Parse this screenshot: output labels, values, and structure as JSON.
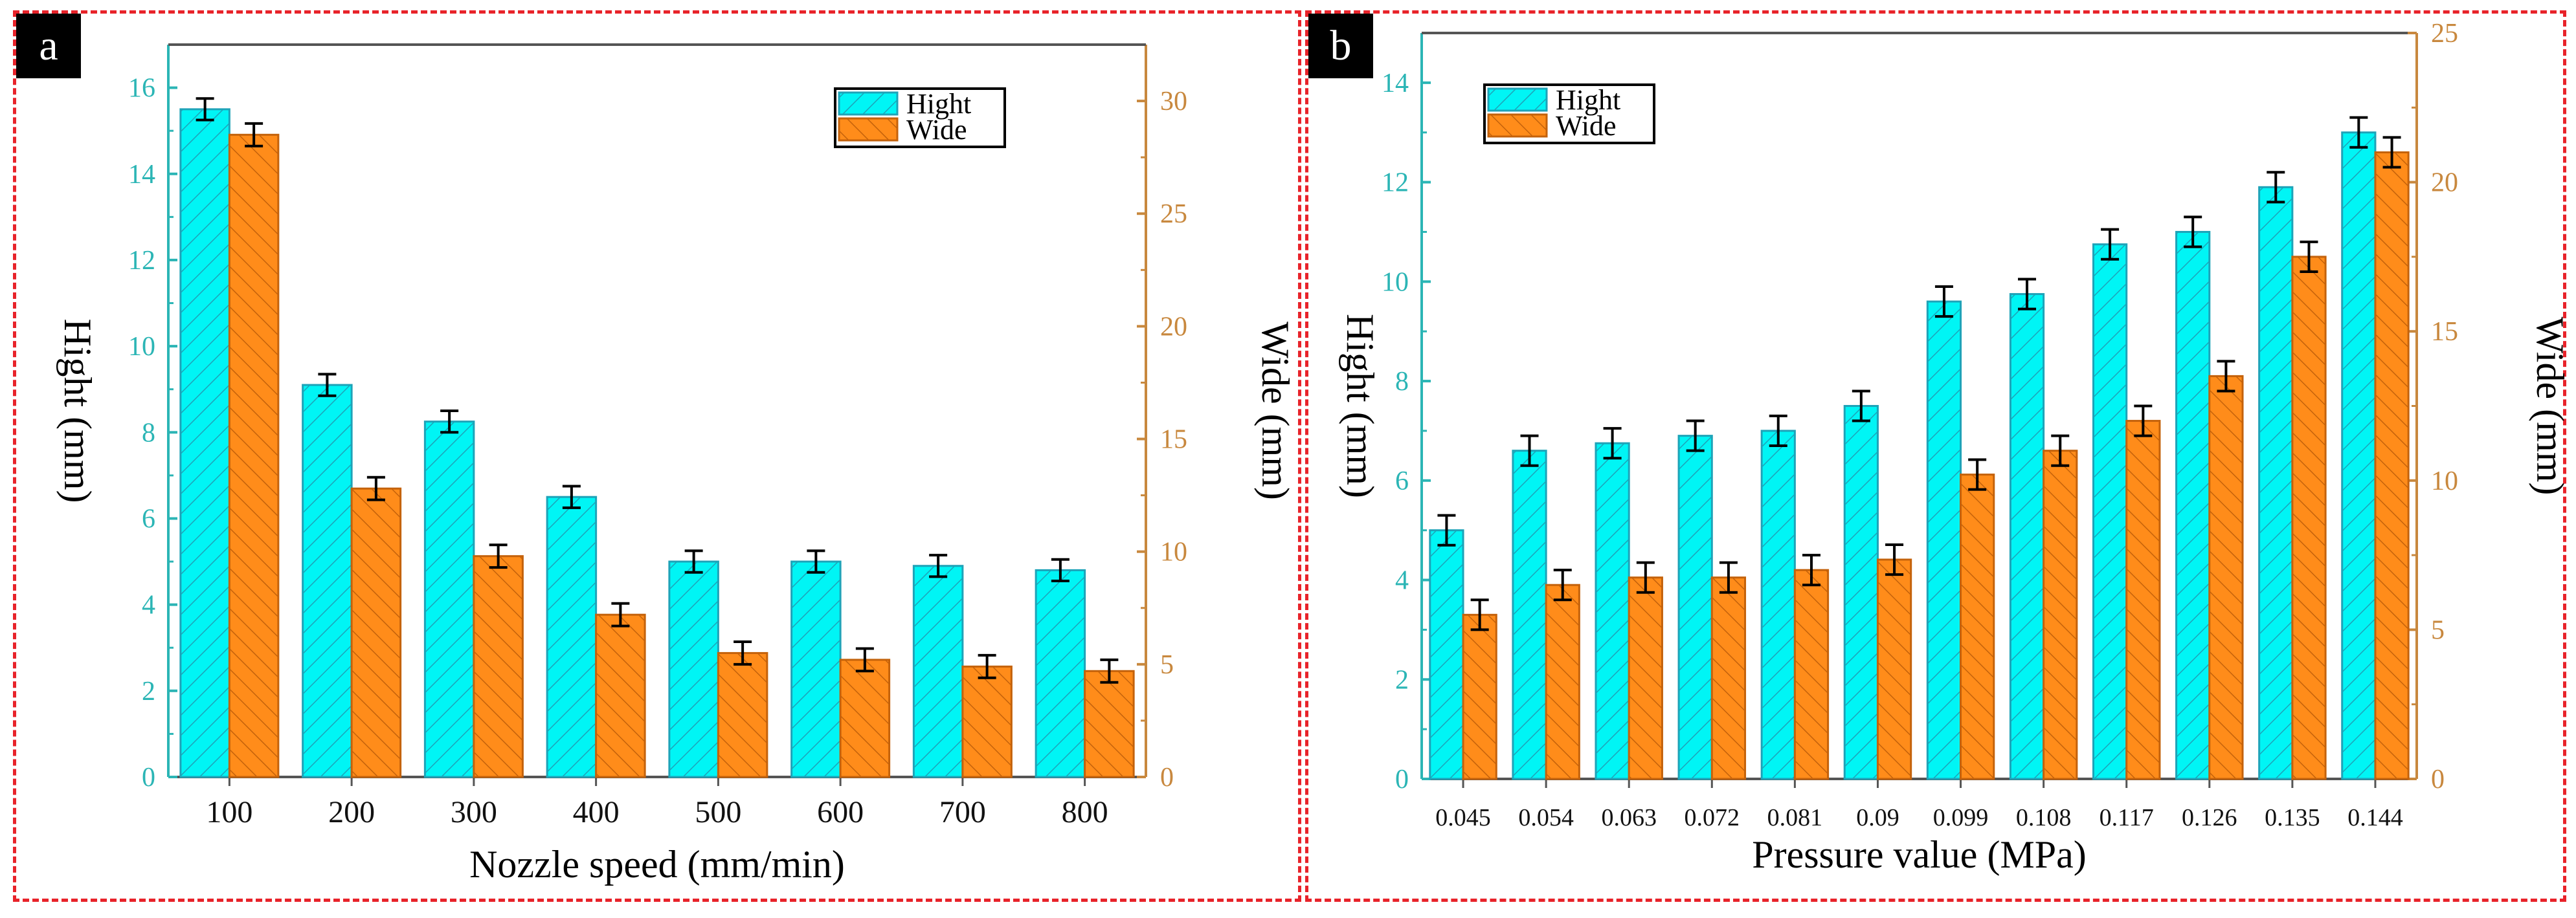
{
  "panels": [
    {
      "label": "a"
    },
    {
      "label": "b"
    }
  ],
  "colors": {
    "hight_fill": "#00f5f5",
    "hight_edge": "#1ea3b8",
    "wide_fill": "#ff8c1a",
    "wide_edge": "#c4620b",
    "left_axis": "#2bb5b5",
    "right_axis": "#c8883e",
    "frame": "#e8232a"
  },
  "chart_data": [
    {
      "type": "bar",
      "panel": "a",
      "title": "",
      "xlabel": "Nozzle speed (mm/min)",
      "ylabel": "Hight (mm)",
      "y2label": "Wide (mm)",
      "categories": [
        "100",
        "200",
        "300",
        "400",
        "500",
        "600",
        "700",
        "800"
      ],
      "ylim": [
        0,
        17
      ],
      "y2lim": [
        0,
        32.5
      ],
      "yticks": [
        0,
        2,
        4,
        6,
        8,
        10,
        12,
        14,
        16
      ],
      "y2ticks": [
        0,
        5,
        10,
        15,
        20,
        25,
        30
      ],
      "legend": "top-right",
      "series": [
        {
          "name": "Hight",
          "axis": "left",
          "values": [
            15.5,
            9.1,
            8.25,
            6.5,
            5.0,
            5.0,
            4.9,
            4.8
          ],
          "errors": [
            0.25,
            0.25,
            0.25,
            0.25,
            0.25,
            0.25,
            0.25,
            0.25
          ]
        },
        {
          "name": "Wide",
          "axis": "right",
          "values": [
            28.5,
            12.8,
            9.8,
            7.2,
            5.5,
            5.2,
            4.9,
            4.7
          ],
          "errors": [
            0.5,
            0.5,
            0.5,
            0.5,
            0.5,
            0.5,
            0.5,
            0.5
          ]
        }
      ]
    },
    {
      "type": "bar",
      "panel": "b",
      "title": "",
      "xlabel": "Pressure value (MPa)",
      "ylabel": "Hight (mm)",
      "y2label": "Wide (mm)",
      "categories": [
        "0.045",
        "0.054",
        "0.063",
        "0.072",
        "0.081",
        "0.09",
        "0.099",
        "0.108",
        "0.117",
        "0.126",
        "0.135",
        "0.144"
      ],
      "ylim": [
        0,
        15
      ],
      "y2lim": [
        0,
        25
      ],
      "yticks": [
        0,
        2,
        4,
        6,
        8,
        10,
        12,
        14
      ],
      "y2ticks": [
        0,
        5,
        10,
        15,
        20,
        25
      ],
      "legend": "top-left",
      "series": [
        {
          "name": "Hight",
          "axis": "left",
          "values": [
            5.0,
            6.6,
            6.75,
            6.9,
            7.0,
            7.5,
            9.6,
            9.75,
            10.75,
            11.0,
            11.9,
            13.0
          ],
          "errors": [
            0.3,
            0.3,
            0.3,
            0.3,
            0.3,
            0.3,
            0.3,
            0.3,
            0.3,
            0.3,
            0.3,
            0.3
          ]
        },
        {
          "name": "Wide",
          "axis": "right",
          "values": [
            5.5,
            6.5,
            6.75,
            6.75,
            7.0,
            7.35,
            10.2,
            11.0,
            12.0,
            13.5,
            17.5,
            21.0
          ],
          "errors": [
            0.5,
            0.5,
            0.5,
            0.5,
            0.5,
            0.5,
            0.5,
            0.5,
            0.5,
            0.5,
            0.5,
            0.5
          ]
        }
      ]
    }
  ]
}
